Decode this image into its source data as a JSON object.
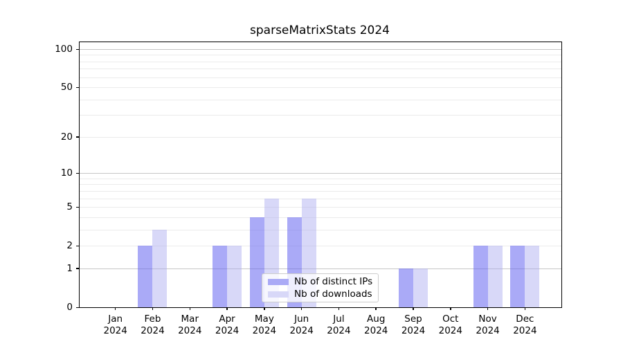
{
  "chart_data": {
    "type": "bar",
    "title": "sparseMatrixStats 2024",
    "scale": "log1p",
    "categories": [
      "Jan",
      "Feb",
      "Mar",
      "Apr",
      "May",
      "Jun",
      "Jul",
      "Aug",
      "Sep",
      "Oct",
      "Nov",
      "Dec"
    ],
    "year": "2024",
    "series": [
      {
        "name": "Nb of distinct IPs",
        "color": "rgba(100,100,240,0.55)",
        "color_on_white": "#aaaaf6",
        "values": [
          0,
          2,
          0,
          2,
          4,
          4,
          0,
          0,
          1,
          0,
          2,
          2
        ]
      },
      {
        "name": "Nb of downloads",
        "color": "rgba(168,168,240,0.45)",
        "color_on_white": "#d8d8f8",
        "values": [
          0,
          3,
          0,
          2,
          6,
          6,
          0,
          0,
          1,
          0,
          2,
          2
        ]
      }
    ],
    "ytick_values": [
      0,
      1,
      2,
      5,
      10,
      20,
      50,
      100
    ],
    "ytick_labels": [
      "0",
      "1",
      "2",
      "5",
      "10",
      "20",
      "50",
      "100"
    ],
    "major_gridlines": [
      1,
      10,
      100
    ],
    "minor_gridlines": [
      2,
      3,
      4,
      5,
      6,
      7,
      8,
      9,
      20,
      30,
      40,
      50,
      60,
      70,
      80,
      90
    ],
    "ylim": [
      0,
      113
    ],
    "grid": true,
    "legend_position": "lower center",
    "spine_color": "#000000",
    "major_grid_color": "#c6c6c6",
    "minor_grid_color": "#ebebeb"
  }
}
